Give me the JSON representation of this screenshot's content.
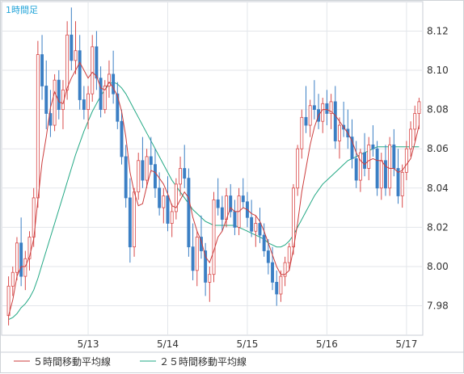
{
  "chart_data": {
    "type": "candlestick",
    "title": "1時間足",
    "ylim": [
      7.965,
      8.135
    ],
    "y_ticks": [
      "8.12",
      "8.10",
      "8.08",
      "8.06",
      "8.04",
      "8.02",
      "8.00",
      "7.98"
    ],
    "y_tick_values": [
      8.12,
      8.1,
      8.08,
      8.06,
      8.04,
      8.02,
      8.0,
      7.98
    ],
    "x_tick_labels": [
      "5/13",
      "5/14",
      "5/15",
      "5/16",
      "5/17"
    ],
    "x_tick_candle_index": [
      19,
      38,
      57,
      76,
      95
    ],
    "grid": true,
    "legend": "bottom",
    "colors": {
      "up": "#d94a4a",
      "down": "#3b7fc4",
      "ma5": "#cc3d3d",
      "ma25": "#22a884",
      "grid": "#e3e6ea",
      "axis": "#c9ced4",
      "title": "#1fa3d8"
    },
    "series": [
      {
        "name": "５時間移動平均線",
        "kind": "ma5"
      },
      {
        "name": "２５時間移動平均線",
        "kind": "ma25"
      }
    ],
    "candles": [
      [
        7.975,
        7.995,
        7.97,
        7.99
      ],
      [
        7.99,
        8.0,
        7.985,
        7.997
      ],
      [
        7.997,
        8.015,
        7.993,
        8.012
      ],
      [
        8.012,
        8.025,
        7.99,
        7.995
      ],
      [
        7.995,
        8.008,
        7.988,
        8.004
      ],
      [
        8.004,
        8.018,
        7.998,
        8.015
      ],
      [
        8.015,
        8.04,
        8.01,
        8.035
      ],
      [
        8.035,
        8.115,
        8.03,
        8.108
      ],
      [
        8.108,
        8.118,
        8.085,
        8.092
      ],
      [
        8.092,
        8.105,
        8.07,
        8.078
      ],
      [
        8.078,
        8.09,
        8.066,
        8.072
      ],
      [
        8.072,
        8.098,
        8.069,
        8.095
      ],
      [
        8.095,
        8.1,
        8.075,
        8.08
      ],
      [
        8.08,
        8.095,
        8.07,
        8.09
      ],
      [
        8.09,
        8.125,
        8.085,
        8.118
      ],
      [
        8.118,
        8.132,
        8.1,
        8.105
      ],
      [
        8.105,
        8.125,
        8.098,
        8.11
      ],
      [
        8.11,
        8.118,
        8.08,
        8.085
      ],
      [
        8.085,
        8.092,
        8.075,
        8.08
      ],
      [
        8.08,
        8.092,
        8.07,
        8.088
      ],
      [
        8.088,
        8.118,
        8.084,
        8.112
      ],
      [
        8.112,
        8.12,
        8.09,
        8.096
      ],
      [
        8.096,
        8.102,
        8.076,
        8.08
      ],
      [
        8.08,
        8.095,
        8.078,
        8.092
      ],
      [
        8.092,
        8.105,
        8.086,
        8.098
      ],
      [
        8.098,
        8.11,
        8.083,
        8.088
      ],
      [
        8.088,
        8.094,
        8.07,
        8.074
      ],
      [
        8.074,
        8.08,
        8.052,
        8.056
      ],
      [
        8.056,
        8.062,
        8.03,
        8.035
      ],
      [
        8.035,
        8.045,
        8.002,
        8.01
      ],
      [
        8.01,
        8.04,
        8.005,
        8.038
      ],
      [
        8.038,
        8.058,
        8.034,
        8.054
      ],
      [
        8.054,
        8.066,
        8.04,
        8.044
      ],
      [
        8.044,
        8.06,
        8.04,
        8.056
      ],
      [
        8.056,
        8.066,
        8.048,
        8.052
      ],
      [
        8.052,
        8.06,
        8.035,
        8.04
      ],
      [
        8.04,
        8.048,
        8.026,
        8.03
      ],
      [
        8.03,
        8.04,
        8.022,
        8.036
      ],
      [
        8.036,
        8.046,
        8.018,
        8.022
      ],
      [
        8.022,
        8.032,
        8.015,
        8.028
      ],
      [
        8.028,
        8.045,
        8.024,
        8.042
      ],
      [
        8.042,
        8.056,
        8.036,
        8.05
      ],
      [
        8.05,
        8.062,
        8.04,
        8.045
      ],
      [
        8.045,
        8.05,
        8.005,
        8.01
      ],
      [
        8.01,
        8.022,
        7.993,
        7.998
      ],
      [
        7.998,
        8.018,
        7.99,
        8.015
      ],
      [
        8.015,
        8.026,
        8.004,
        8.008
      ],
      [
        8.008,
        8.012,
        7.985,
        7.992
      ],
      [
        7.992,
        8.0,
        7.982,
        7.996
      ],
      [
        7.996,
        8.038,
        7.992,
        8.034
      ],
      [
        8.034,
        8.045,
        8.026,
        8.03
      ],
      [
        8.03,
        8.036,
        8.018,
        8.024
      ],
      [
        8.024,
        8.04,
        8.02,
        8.036
      ],
      [
        8.036,
        8.042,
        8.025,
        8.028
      ],
      [
        8.028,
        8.034,
        8.016,
        8.02
      ],
      [
        8.02,
        8.04,
        8.016,
        8.036
      ],
      [
        8.036,
        8.045,
        8.03,
        8.033
      ],
      [
        8.033,
        8.038,
        8.02,
        8.025
      ],
      [
        8.025,
        8.034,
        8.015,
        8.018
      ],
      [
        8.018,
        8.026,
        8.01,
        8.022
      ],
      [
        8.022,
        8.03,
        8.012,
        8.016
      ],
      [
        8.016,
        8.022,
        8.005,
        8.008
      ],
      [
        8.008,
        8.014,
        7.996,
        8.002
      ],
      [
        8.002,
        8.01,
        7.988,
        7.992
      ],
      [
        7.992,
        7.998,
        7.98,
        7.986
      ],
      [
        7.986,
        7.998,
        7.982,
        7.995
      ],
      [
        7.995,
        8.005,
        7.99,
        8.002
      ],
      [
        8.002,
        8.012,
        7.998,
        8.01
      ],
      [
        8.01,
        8.042,
        8.006,
        8.04
      ],
      [
        8.04,
        8.062,
        8.036,
        8.06
      ],
      [
        8.06,
        8.08,
        8.055,
        8.076
      ],
      [
        8.076,
        8.092,
        8.068,
        8.072
      ],
      [
        8.072,
        8.085,
        8.066,
        8.082
      ],
      [
        8.082,
        8.095,
        8.075,
        8.08
      ],
      [
        8.08,
        8.088,
        8.07,
        8.074
      ],
      [
        8.074,
        8.086,
        8.068,
        8.083
      ],
      [
        8.083,
        8.09,
        8.072,
        8.078
      ],
      [
        8.078,
        8.088,
        8.07,
        8.084
      ],
      [
        8.084,
        8.092,
        8.06,
        8.064
      ],
      [
        8.064,
        8.076,
        8.055,
        8.072
      ],
      [
        8.072,
        8.084,
        8.066,
        8.07
      ],
      [
        8.07,
        8.08,
        8.06,
        8.066
      ],
      [
        8.066,
        8.075,
        8.05,
        8.055
      ],
      [
        8.055,
        8.064,
        8.04,
        8.044
      ],
      [
        8.044,
        8.06,
        8.038,
        8.058
      ],
      [
        8.058,
        8.068,
        8.046,
        8.05
      ],
      [
        8.05,
        8.066,
        8.044,
        8.062
      ],
      [
        8.062,
        8.072,
        8.056,
        8.06
      ],
      [
        8.06,
        8.064,
        8.036,
        8.04
      ],
      [
        8.04,
        8.058,
        8.034,
        8.054
      ],
      [
        8.054,
        8.062,
        8.036,
        8.04
      ],
      [
        8.04,
        8.066,
        8.036,
        8.062
      ],
      [
        8.062,
        8.07,
        8.046,
        8.05
      ],
      [
        8.05,
        8.06,
        8.032,
        8.036
      ],
      [
        8.036,
        8.052,
        8.03,
        8.048
      ],
      [
        8.048,
        8.064,
        8.044,
        8.06
      ],
      [
        8.06,
        8.074,
        8.056,
        8.07
      ],
      [
        8.07,
        8.082,
        8.064,
        8.078
      ],
      [
        8.078,
        8.086,
        8.07,
        8.084
      ]
    ],
    "ma5_path": [
      7.975,
      7.983,
      7.995,
      8.0,
      8.0,
      8.005,
      8.014,
      8.034,
      8.053,
      8.066,
      8.081,
      8.089,
      8.084,
      8.083,
      8.091,
      8.096,
      8.1,
      8.104,
      8.1,
      8.096,
      8.099,
      8.097,
      8.091,
      8.09,
      8.094,
      8.091,
      8.087,
      8.079,
      8.066,
      8.048,
      8.038,
      8.031,
      8.032,
      8.041,
      8.049,
      8.048,
      8.045,
      8.042,
      8.037,
      8.031,
      8.03,
      8.034,
      8.038,
      8.035,
      8.025,
      8.018,
      8.013,
      8.005,
      8.002,
      8.008,
      8.015,
      8.018,
      8.024,
      8.03,
      8.028,
      8.028,
      8.03,
      8.029,
      8.027,
      8.026,
      8.023,
      8.018,
      8.012,
      8.006,
      8.0,
      7.996,
      7.996,
      7.998,
      8.009,
      8.022,
      8.038,
      8.05,
      8.062,
      8.071,
      8.077,
      8.08,
      8.08,
      8.079,
      8.077,
      8.074,
      8.071,
      8.068,
      8.064,
      8.058,
      8.054,
      8.052,
      8.054,
      8.055,
      8.054,
      8.054,
      8.051,
      8.05,
      8.05,
      8.048,
      8.049,
      8.052,
      8.055,
      8.063,
      8.072
    ],
    "ma25_path": [
      7.973,
      7.974,
      7.976,
      7.979,
      7.981,
      7.984,
      7.988,
      7.994,
      8.001,
      8.008,
      8.015,
      8.022,
      8.029,
      8.036,
      8.043,
      8.05,
      8.057,
      8.063,
      8.069,
      8.074,
      8.079,
      8.083,
      8.087,
      8.09,
      8.093,
      8.094,
      8.093,
      8.091,
      8.088,
      8.084,
      8.08,
      8.076,
      8.072,
      8.068,
      8.064,
      8.06,
      8.056,
      8.052,
      8.048,
      8.044,
      8.041,
      8.038,
      8.035,
      8.032,
      8.029,
      8.027,
      8.025,
      8.023,
      8.022,
      8.021,
      8.021,
      8.021,
      8.021,
      8.021,
      8.021,
      8.02,
      8.019,
      8.018,
      8.017,
      8.016,
      8.015,
      8.014,
      8.012,
      8.011,
      8.01,
      8.01,
      8.011,
      8.013,
      8.016,
      8.02,
      8.024,
      8.028,
      8.032,
      8.036,
      8.039,
      8.042,
      8.044,
      8.046,
      8.048,
      8.05,
      8.052,
      8.054,
      8.055,
      8.056,
      8.057,
      8.058,
      8.059,
      8.06,
      8.061,
      8.061,
      8.061,
      8.061,
      8.061,
      8.061,
      8.061,
      8.061,
      8.061,
      8.061,
      8.061
    ]
  }
}
